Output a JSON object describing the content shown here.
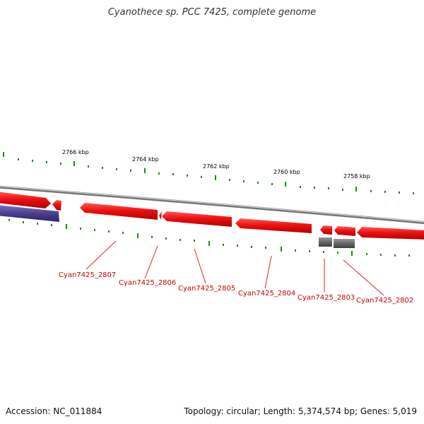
{
  "title": "Cyanothece sp. PCC 7425, complete genome",
  "footer": {
    "accession": "Accession: NC_011884",
    "summary": "Topology: circular; Length: 5,374,574 bp; Genes: 5,019"
  },
  "colors": {
    "background": "#ffffff",
    "backbone": "#888888",
    "gene_forward": "#ee1111",
    "gene_reverse": "#4a3f8f",
    "gene_other": "#666666",
    "tick": "#1a8a1a",
    "label": "#cc0000",
    "kbp_label": "#000000",
    "title": "#333333"
  },
  "ruler": {
    "kbp_labels": [
      {
        "text": "2766 kbp"
      },
      {
        "text": "2764 kbp"
      },
      {
        "text": "2762 kbp"
      },
      {
        "text": "2760 kbp"
      },
      {
        "text": "2758 kbp"
      }
    ]
  },
  "gene_labels": [
    "Cyan7425_2807",
    "Cyan7425_2806",
    "Cyan7425_2805",
    "Cyan7425_2804",
    "Cyan7425_2803",
    "Cyan7425_2802"
  ]
}
